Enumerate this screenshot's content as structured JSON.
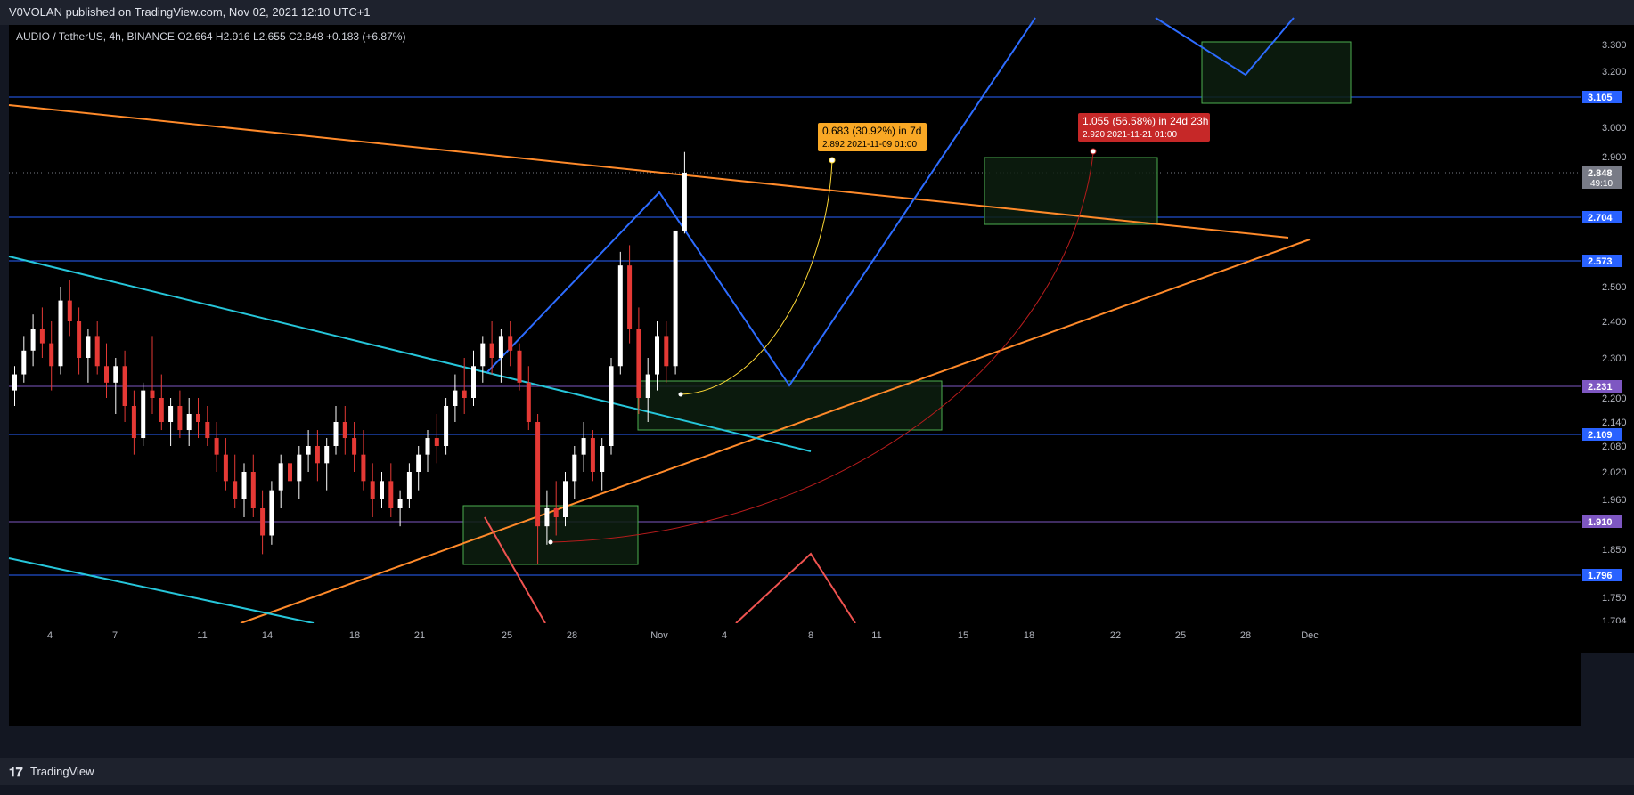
{
  "header": {
    "published_line": "V0VOLAN published on TradingView.com, Nov 02, 2021 12:10 UTC+1"
  },
  "symbol": {
    "name": "AUDIO / TetherUS, 4h, BINANCE",
    "open": "O2.664",
    "high": "H2.916",
    "low": "L2.655",
    "close": "C2.848",
    "change": "+0.183 (+6.87%)"
  },
  "footer": {
    "brand": "TradingView",
    "logo_icon": "tradingview-logo-icon"
  },
  "colors": {
    "background": "#000000",
    "frame": "#1e222d",
    "bull": "#ffffff",
    "bear": "#e53935",
    "level_line": "#2962ff",
    "purple_line": "#7e57c2",
    "cyan_line": "#26c6da",
    "orange_line": "#ff8a2a",
    "blue_zigzag": "#2d6cff",
    "zone_fill": "#0d1f0f",
    "zone_stroke": "#4caf50",
    "yellow_label": "#f9a825",
    "red_label": "#c62828"
  },
  "chart_data": {
    "type": "candlestick",
    "price_axis": {
      "ticks": [
        "3.300",
        "3.200",
        "3.000",
        "2.900",
        "2.500",
        "2.400",
        "2.300",
        "2.200",
        "2.140",
        "2.080",
        "2.020",
        "1.960",
        "1.850",
        "1.750",
        "1.704"
      ],
      "range": [
        1.704,
        3.34
      ]
    },
    "time_axis": {
      "labels": [
        "4",
        "7",
        "11",
        "14",
        "18",
        "21",
        "25",
        "28",
        "Nov",
        "4",
        "8",
        "11",
        "15",
        "18",
        "22",
        "25",
        "28",
        "Dec"
      ]
    },
    "level_labels": [
      {
        "value": "3.105",
        "color": "#2962ff"
      },
      {
        "value": "2.704",
        "color": "#2962ff"
      },
      {
        "value": "2.573",
        "color": "#2962ff"
      },
      {
        "value": "2.231",
        "color": "#7e57c2"
      },
      {
        "value": "2.109",
        "color": "#2962ff"
      },
      {
        "value": "1.910",
        "color": "#7e57c2"
      },
      {
        "value": "1.796",
        "color": "#2962ff"
      }
    ],
    "current_price": {
      "value": "2.848",
      "countdown": "49:10"
    },
    "projections": [
      {
        "line1": "0.683 (30.92%) in 7d",
        "line2": "2.892",
        "date": "2021-11-09  01:00",
        "color": "#f9a825"
      },
      {
        "line1": "1.055 (56.58%) in 24d 23h",
        "line2": "2.920",
        "date": "2021-11-21  01:00",
        "color": "#c62828"
      }
    ],
    "candles": [
      [
        2.22,
        2.28,
        2.18,
        2.26
      ],
      [
        2.26,
        2.36,
        2.24,
        2.32
      ],
      [
        2.32,
        2.42,
        2.28,
        2.38
      ],
      [
        2.38,
        2.44,
        2.3,
        2.34
      ],
      [
        2.34,
        2.4,
        2.22,
        2.28
      ],
      [
        2.28,
        2.5,
        2.26,
        2.46
      ],
      [
        2.46,
        2.52,
        2.36,
        2.4
      ],
      [
        2.4,
        2.44,
        2.26,
        2.3
      ],
      [
        2.3,
        2.38,
        2.24,
        2.36
      ],
      [
        2.36,
        2.4,
        2.26,
        2.28
      ],
      [
        2.28,
        2.34,
        2.2,
        2.24
      ],
      [
        2.24,
        2.3,
        2.16,
        2.28
      ],
      [
        2.28,
        2.32,
        2.14,
        2.18
      ],
      [
        2.18,
        2.22,
        2.06,
        2.1
      ],
      [
        2.1,
        2.24,
        2.08,
        2.22
      ],
      [
        2.22,
        2.36,
        2.16,
        2.2
      ],
      [
        2.2,
        2.26,
        2.12,
        2.14
      ],
      [
        2.14,
        2.2,
        2.08,
        2.18
      ],
      [
        2.18,
        2.22,
        2.1,
        2.12
      ],
      [
        2.12,
        2.2,
        2.08,
        2.16
      ],
      [
        2.16,
        2.2,
        2.1,
        2.14
      ],
      [
        2.14,
        2.18,
        2.08,
        2.1
      ],
      [
        2.1,
        2.14,
        2.02,
        2.06
      ],
      [
        2.06,
        2.1,
        1.98,
        2.0
      ],
      [
        2.0,
        2.06,
        1.94,
        1.96
      ],
      [
        1.96,
        2.04,
        1.92,
        2.02
      ],
      [
        2.02,
        2.06,
        1.92,
        1.94
      ],
      [
        1.94,
        1.98,
        1.84,
        1.88
      ],
      [
        1.88,
        2.0,
        1.86,
        1.98
      ],
      [
        1.98,
        2.06,
        1.94,
        2.04
      ],
      [
        2.04,
        2.1,
        1.98,
        2.0
      ],
      [
        2.0,
        2.08,
        1.96,
        2.06
      ],
      [
        2.06,
        2.12,
        2.02,
        2.08
      ],
      [
        2.08,
        2.12,
        2.0,
        2.04
      ],
      [
        2.04,
        2.1,
        1.98,
        2.08
      ],
      [
        2.08,
        2.18,
        2.06,
        2.14
      ],
      [
        2.14,
        2.18,
        2.06,
        2.1
      ],
      [
        2.1,
        2.14,
        2.02,
        2.06
      ],
      [
        2.06,
        2.12,
        1.98,
        2.0
      ],
      [
        2.0,
        2.04,
        1.92,
        1.96
      ],
      [
        1.96,
        2.02,
        1.94,
        2.0
      ],
      [
        2.0,
        2.04,
        1.92,
        1.94
      ],
      [
        1.94,
        1.98,
        1.9,
        1.96
      ],
      [
        1.96,
        2.04,
        1.94,
        2.02
      ],
      [
        2.02,
        2.08,
        1.98,
        2.06
      ],
      [
        2.06,
        2.12,
        2.02,
        2.1
      ],
      [
        2.1,
        2.16,
        2.04,
        2.08
      ],
      [
        2.08,
        2.2,
        2.06,
        2.18
      ],
      [
        2.18,
        2.26,
        2.14,
        2.22
      ],
      [
        2.22,
        2.3,
        2.16,
        2.2
      ],
      [
        2.2,
        2.32,
        2.18,
        2.28
      ],
      [
        2.28,
        2.36,
        2.24,
        2.34
      ],
      [
        2.34,
        2.4,
        2.26,
        2.3
      ],
      [
        2.3,
        2.38,
        2.24,
        2.36
      ],
      [
        2.36,
        2.4,
        2.28,
        2.32
      ],
      [
        2.32,
        2.34,
        2.22,
        2.24
      ],
      [
        2.24,
        2.28,
        2.12,
        2.14
      ],
      [
        2.14,
        2.16,
        1.82,
        1.9
      ],
      [
        1.9,
        1.98,
        1.86,
        1.94
      ],
      [
        1.94,
        2.0,
        1.88,
        1.92
      ],
      [
        1.92,
        2.02,
        1.9,
        2.0
      ],
      [
        2.0,
        2.08,
        1.96,
        2.06
      ],
      [
        2.06,
        2.14,
        2.02,
        2.1
      ],
      [
        2.1,
        2.12,
        2.0,
        2.02
      ],
      [
        2.02,
        2.1,
        1.98,
        2.08
      ],
      [
        2.08,
        2.3,
        2.06,
        2.28
      ],
      [
        2.28,
        2.6,
        2.26,
        2.56
      ],
      [
        2.56,
        2.62,
        2.34,
        2.38
      ],
      [
        2.38,
        2.44,
        2.16,
        2.2
      ],
      [
        2.2,
        2.3,
        2.14,
        2.26
      ],
      [
        2.26,
        2.4,
        2.22,
        2.36
      ],
      [
        2.36,
        2.4,
        2.24,
        2.28
      ],
      [
        2.28,
        2.66,
        2.26,
        2.664
      ],
      [
        2.664,
        2.916,
        2.655,
        2.848
      ]
    ]
  }
}
